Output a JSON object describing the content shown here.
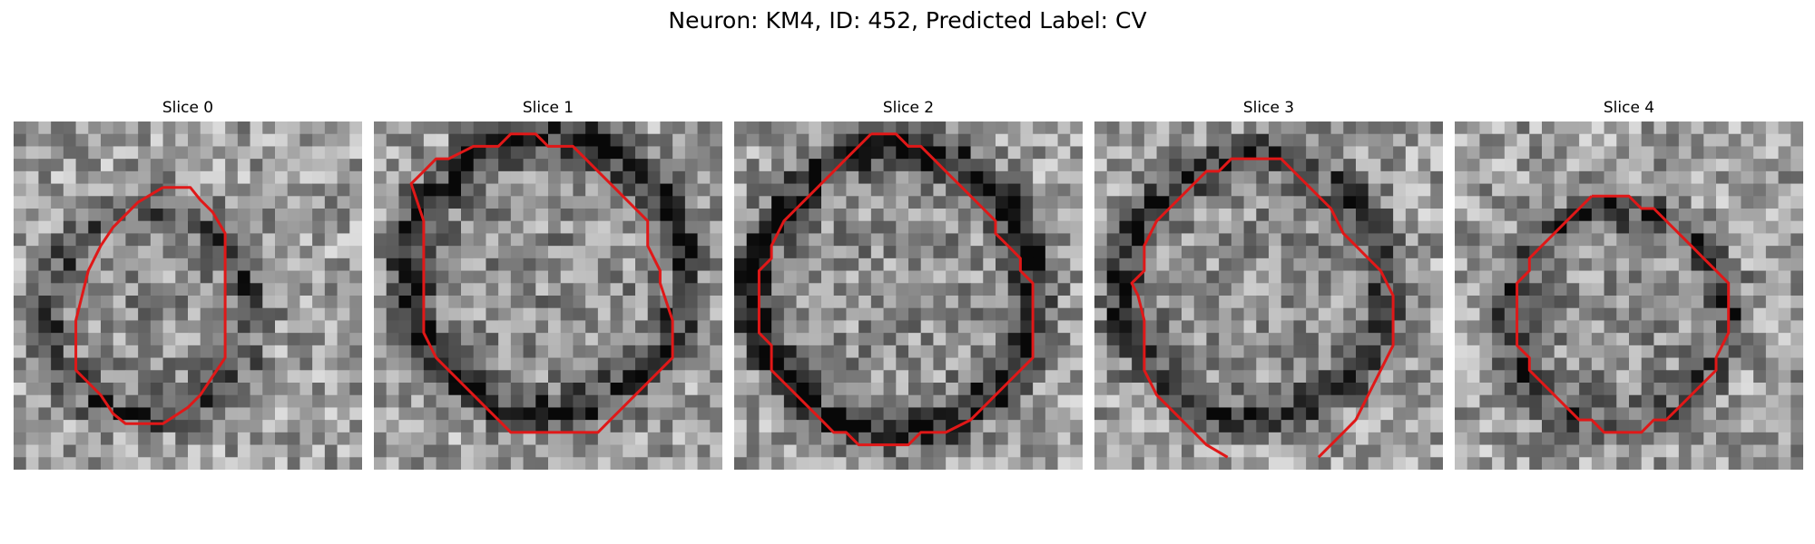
{
  "figure": {
    "title": "Neuron: KM4, ID: 452, Predicted Label: CV"
  },
  "colors": {
    "contour": "#e01818",
    "background": "#ffffff"
  },
  "panels": [
    {
      "label": "Slice 0",
      "seed": 11,
      "contour": [
        [
          12,
          5.3
        ],
        [
          14.2,
          5.3
        ],
        [
          15,
          6.3
        ],
        [
          16,
          7.3
        ],
        [
          17,
          9
        ],
        [
          17,
          19
        ],
        [
          16,
          20.5
        ],
        [
          15,
          22
        ],
        [
          14,
          23
        ],
        [
          12,
          24.3
        ],
        [
          9,
          24.3
        ],
        [
          8,
          23.5
        ],
        [
          7,
          22
        ],
        [
          6,
          21
        ],
        [
          5,
          20
        ],
        [
          5,
          16
        ],
        [
          6,
          12
        ],
        [
          7,
          10
        ],
        [
          8,
          8.5
        ],
        [
          10,
          6.5
        ]
      ],
      "closed": true,
      "dark_ring": 0.35
    },
    {
      "label": "Slice 1",
      "seed": 23,
      "contour": [
        [
          12,
          1
        ],
        [
          13,
          1
        ],
        [
          14,
          2
        ],
        [
          16,
          2
        ],
        [
          17,
          3
        ],
        [
          18,
          4
        ],
        [
          19,
          5
        ],
        [
          20,
          6
        ],
        [
          21,
          7
        ],
        [
          22,
          8
        ],
        [
          22,
          10
        ],
        [
          23,
          12
        ],
        [
          23,
          13
        ],
        [
          24,
          16
        ],
        [
          24,
          19
        ],
        [
          23,
          20
        ],
        [
          22,
          21
        ],
        [
          21,
          22
        ],
        [
          20,
          23
        ],
        [
          19,
          24
        ],
        [
          18,
          25
        ],
        [
          15,
          25
        ],
        [
          11,
          25
        ],
        [
          10,
          24
        ],
        [
          9,
          23
        ],
        [
          8,
          22
        ],
        [
          7,
          21
        ],
        [
          6,
          20
        ],
        [
          5,
          19
        ],
        [
          4,
          17
        ],
        [
          4,
          12
        ],
        [
          4,
          8
        ],
        [
          3,
          5
        ],
        [
          4,
          4
        ],
        [
          5,
          3
        ],
        [
          6,
          3
        ],
        [
          8,
          2
        ],
        [
          10,
          2
        ],
        [
          11,
          1
        ]
      ],
      "closed": true,
      "dark_ring": 0.55
    },
    {
      "label": "Slice 2",
      "seed": 37,
      "contour": [
        [
          11,
          1
        ],
        [
          13,
          1
        ],
        [
          14,
          2
        ],
        [
          15,
          2
        ],
        [
          16,
          3
        ],
        [
          17,
          4
        ],
        [
          18,
          5
        ],
        [
          19,
          6
        ],
        [
          20,
          7
        ],
        [
          21,
          8
        ],
        [
          21,
          9
        ],
        [
          22,
          10
        ],
        [
          23,
          11
        ],
        [
          23,
          12
        ],
        [
          24,
          13
        ],
        [
          24,
          16
        ],
        [
          24,
          19
        ],
        [
          23,
          20
        ],
        [
          22,
          21
        ],
        [
          21,
          22
        ],
        [
          20,
          23
        ],
        [
          19,
          24
        ],
        [
          17,
          25
        ],
        [
          15,
          25
        ],
        [
          14,
          26
        ],
        [
          12,
          26
        ],
        [
          10,
          26
        ],
        [
          9,
          25
        ],
        [
          8,
          25
        ],
        [
          7,
          24
        ],
        [
          6,
          23
        ],
        [
          5,
          22
        ],
        [
          4,
          21
        ],
        [
          3,
          20
        ],
        [
          3,
          18
        ],
        [
          2,
          17
        ],
        [
          2,
          15
        ],
        [
          2,
          12
        ],
        [
          3,
          11
        ],
        [
          3,
          10
        ],
        [
          4,
          8
        ],
        [
          5,
          7
        ],
        [
          6,
          6
        ],
        [
          7,
          5
        ],
        [
          8,
          4
        ],
        [
          9,
          3
        ],
        [
          10,
          2
        ]
      ],
      "closed": true,
      "dark_ring": 0.6
    },
    {
      "label": "Slice 3",
      "seed": 53,
      "contour": [
        [
          10.7,
          27
        ],
        [
          9,
          26
        ],
        [
          7,
          24
        ],
        [
          5,
          22
        ],
        [
          4,
          20
        ],
        [
          4,
          17
        ],
        [
          4,
          16
        ],
        [
          3.5,
          14
        ],
        [
          3,
          13
        ],
        [
          4,
          12
        ],
        [
          4,
          10
        ],
        [
          5,
          8
        ],
        [
          6,
          7
        ],
        [
          7,
          6
        ],
        [
          8,
          5
        ],
        [
          9,
          4
        ],
        [
          10,
          4
        ],
        [
          11,
          3
        ],
        [
          15,
          3
        ],
        [
          16,
          4
        ],
        [
          17,
          5
        ],
        [
          18,
          6
        ],
        [
          19,
          7
        ],
        [
          20,
          9
        ],
        [
          21,
          10
        ],
        [
          22,
          11
        ],
        [
          23,
          12
        ],
        [
          24,
          14
        ],
        [
          24,
          18
        ],
        [
          23,
          20
        ],
        [
          22,
          22
        ],
        [
          21,
          24
        ],
        [
          20,
          25
        ],
        [
          18,
          27
        ]
      ],
      "closed": false,
      "dark_ring": 0.45
    },
    {
      "label": "Slice 4",
      "seed": 71,
      "contour": [
        [
          11,
          6
        ],
        [
          12,
          6
        ],
        [
          14,
          6
        ],
        [
          15,
          7
        ],
        [
          16,
          7
        ],
        [
          17,
          8
        ],
        [
          18,
          9
        ],
        [
          19,
          10
        ],
        [
          20,
          11
        ],
        [
          21,
          12
        ],
        [
          22,
          13
        ],
        [
          22,
          15
        ],
        [
          22,
          17
        ],
        [
          21,
          19
        ],
        [
          21,
          20
        ],
        [
          20,
          21
        ],
        [
          19,
          22
        ],
        [
          18,
          23
        ],
        [
          17,
          24
        ],
        [
          16,
          24
        ],
        [
          15,
          25
        ],
        [
          13,
          25
        ],
        [
          12,
          25
        ],
        [
          11,
          24
        ],
        [
          10,
          24
        ],
        [
          9,
          23
        ],
        [
          8,
          22
        ],
        [
          7,
          21
        ],
        [
          6,
          20
        ],
        [
          6,
          19
        ],
        [
          5,
          18
        ],
        [
          5,
          17
        ],
        [
          5,
          15
        ],
        [
          5,
          13
        ],
        [
          6,
          12
        ],
        [
          6,
          11
        ],
        [
          7,
          10
        ],
        [
          8,
          9
        ],
        [
          9,
          8
        ],
        [
          10,
          7
        ]
      ],
      "closed": true,
      "dark_ring": 0.4
    }
  ]
}
